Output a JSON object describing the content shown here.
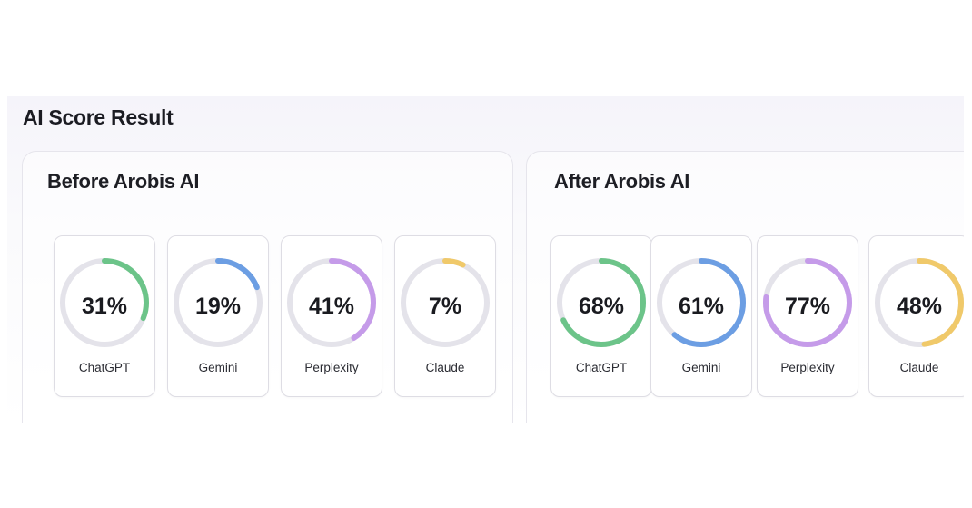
{
  "title": "AI Score Result",
  "chart_data": [
    {
      "type": "donut",
      "title": "Before Arobis AI",
      "categories": [
        "ChatGPT",
        "Gemini",
        "Perplexity",
        "Claude"
      ],
      "values": [
        31,
        19,
        41,
        7
      ],
      "value_labels": [
        "31%",
        "19%",
        "41%",
        "7%"
      ],
      "colors": [
        "#6cc489",
        "#6c9ee3",
        "#c59be9",
        "#f0c96a"
      ],
      "range": [
        0,
        100
      ]
    },
    {
      "type": "donut",
      "title": "After Arobis AI",
      "categories": [
        "ChatGPT",
        "Gemini",
        "Perplexity",
        "Claude"
      ],
      "values": [
        68,
        61,
        77,
        48
      ],
      "value_labels": [
        "68%",
        "61%",
        "77%",
        "48%"
      ],
      "colors": [
        "#6cc489",
        "#6c9ee3",
        "#c59be9",
        "#f0c96a"
      ],
      "range": [
        0,
        100
      ]
    }
  ]
}
